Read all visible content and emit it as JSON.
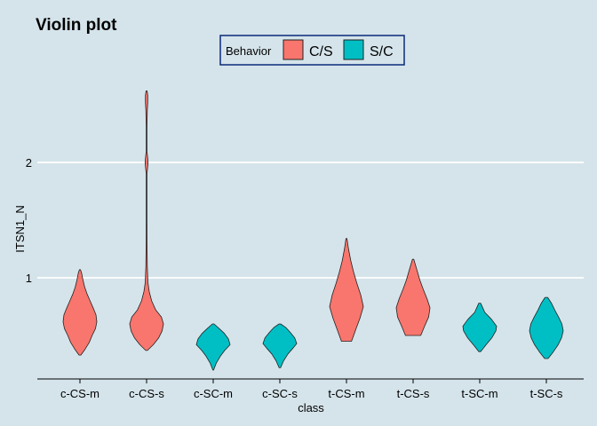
{
  "chart_data": {
    "type": "violin",
    "title": "Violin plot",
    "xlabel": "class",
    "ylabel": "ITSN1_N",
    "categories": [
      "c-CS-m",
      "c-CS-s",
      "c-SC-m",
      "c-SC-s",
      "t-CS-m",
      "t-CS-s",
      "t-SC-m",
      "t-SC-s"
    ],
    "yticks": [
      "1",
      "2"
    ],
    "ylim": [
      0.13,
      2.8
    ],
    "grid": "horizontal-major",
    "legend": {
      "title": "Behavior",
      "placement": "top-center",
      "items": [
        {
          "label": "C/S",
          "color": "#f8766d"
        },
        {
          "label": "S/C",
          "color": "#00bfc4"
        }
      ]
    },
    "series": [
      {
        "name": "c-CS-m",
        "behavior": "C/S",
        "color": "#f8766d",
        "profile": [
          [
            0.33,
            0.05
          ],
          [
            0.38,
            0.3
          ],
          [
            0.44,
            0.55
          ],
          [
            0.5,
            0.72
          ],
          [
            0.56,
            0.92
          ],
          [
            0.62,
            1.0
          ],
          [
            0.68,
            0.95
          ],
          [
            0.74,
            0.78
          ],
          [
            0.8,
            0.6
          ],
          [
            0.86,
            0.42
          ],
          [
            0.92,
            0.28
          ],
          [
            0.98,
            0.18
          ],
          [
            1.04,
            0.1
          ],
          [
            1.07,
            0.03
          ]
        ]
      },
      {
        "name": "c-CS-s",
        "behavior": "C/S",
        "color": "#f8766d",
        "profile": [
          [
            0.37,
            0.05
          ],
          [
            0.42,
            0.4
          ],
          [
            0.48,
            0.72
          ],
          [
            0.54,
            0.92
          ],
          [
            0.6,
            1.0
          ],
          [
            0.66,
            0.88
          ],
          [
            0.72,
            0.55
          ],
          [
            0.8,
            0.3
          ],
          [
            0.88,
            0.16
          ],
          [
            0.96,
            0.08
          ],
          [
            1.1,
            0.04
          ],
          [
            1.3,
            0.025
          ],
          [
            1.5,
            0.02
          ],
          [
            1.7,
            0.02
          ],
          [
            1.9,
            0.02
          ],
          [
            1.95,
            0.06
          ],
          [
            2.0,
            0.09
          ],
          [
            2.05,
            0.06
          ],
          [
            2.1,
            0.02
          ],
          [
            2.3,
            0.02
          ],
          [
            2.45,
            0.04
          ],
          [
            2.52,
            0.07
          ],
          [
            2.58,
            0.07
          ],
          [
            2.62,
            0.03
          ]
        ]
      },
      {
        "name": "c-SC-m",
        "behavior": "S/C",
        "color": "#00bfc4",
        "profile": [
          [
            0.2,
            0.02
          ],
          [
            0.26,
            0.18
          ],
          [
            0.32,
            0.42
          ],
          [
            0.37,
            0.68
          ],
          [
            0.42,
            1.0
          ],
          [
            0.47,
            0.9
          ],
          [
            0.52,
            0.65
          ],
          [
            0.56,
            0.35
          ],
          [
            0.6,
            0.05
          ]
        ]
      },
      {
        "name": "c-SC-s",
        "behavior": "S/C",
        "color": "#00bfc4",
        "profile": [
          [
            0.22,
            0.04
          ],
          [
            0.28,
            0.22
          ],
          [
            0.34,
            0.48
          ],
          [
            0.39,
            0.78
          ],
          [
            0.43,
            1.0
          ],
          [
            0.48,
            0.88
          ],
          [
            0.53,
            0.6
          ],
          [
            0.57,
            0.35
          ],
          [
            0.6,
            0.05
          ]
        ]
      },
      {
        "name": "t-CS-m",
        "behavior": "C/S",
        "color": "#f8766d",
        "profile": [
          [
            0.45,
            0.3
          ],
          [
            0.55,
            0.55
          ],
          [
            0.65,
            0.8
          ],
          [
            0.75,
            1.0
          ],
          [
            0.85,
            0.85
          ],
          [
            0.95,
            0.62
          ],
          [
            1.05,
            0.42
          ],
          [
            1.15,
            0.25
          ],
          [
            1.25,
            0.12
          ],
          [
            1.3,
            0.07
          ],
          [
            1.34,
            0.03
          ]
        ]
      },
      {
        "name": "t-CS-s",
        "behavior": "C/S",
        "color": "#f8766d",
        "profile": [
          [
            0.5,
            0.45
          ],
          [
            0.58,
            0.68
          ],
          [
            0.66,
            0.92
          ],
          [
            0.74,
            1.0
          ],
          [
            0.82,
            0.82
          ],
          [
            0.9,
            0.6
          ],
          [
            0.98,
            0.4
          ],
          [
            1.06,
            0.24
          ],
          [
            1.12,
            0.12
          ],
          [
            1.16,
            0.04
          ]
        ]
      },
      {
        "name": "t-SC-m",
        "behavior": "S/C",
        "color": "#00bfc4",
        "profile": [
          [
            0.36,
            0.05
          ],
          [
            0.42,
            0.38
          ],
          [
            0.48,
            0.72
          ],
          [
            0.54,
            0.96
          ],
          [
            0.58,
            1.0
          ],
          [
            0.64,
            0.7
          ],
          [
            0.7,
            0.3
          ],
          [
            0.74,
            0.18
          ],
          [
            0.78,
            0.05
          ]
        ]
      },
      {
        "name": "t-SC-s",
        "behavior": "S/C",
        "color": "#00bfc4",
        "profile": [
          [
            0.3,
            0.1
          ],
          [
            0.36,
            0.42
          ],
          [
            0.42,
            0.7
          ],
          [
            0.48,
            0.9
          ],
          [
            0.54,
            1.0
          ],
          [
            0.6,
            0.92
          ],
          [
            0.66,
            0.72
          ],
          [
            0.72,
            0.5
          ],
          [
            0.78,
            0.3
          ],
          [
            0.83,
            0.08
          ]
        ]
      }
    ]
  }
}
